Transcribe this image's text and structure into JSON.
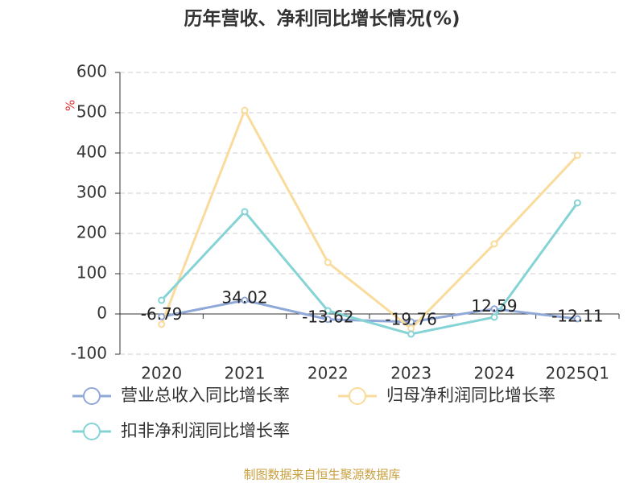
{
  "chart_data": {
    "type": "line",
    "title": "历年营收、净利同比增长情况(%)",
    "y_label": "%",
    "source": "制图数据来自恒生聚源数据库",
    "categories": [
      "2020",
      "2021",
      "2022",
      "2023",
      "2024",
      "2025Q1"
    ],
    "series": [
      {
        "name": "营业总收入同比增长率",
        "color": "#8fa8d8",
        "values": [
          -6.79,
          34.02,
          -13.62,
          -19.76,
          12.59,
          -12.11
        ],
        "show_labels": true
      },
      {
        "name": "归母净利润同比增长率",
        "color": "#fadb9c",
        "values": [
          -26,
          506,
          128,
          -36,
          174,
          394
        ]
      },
      {
        "name": "扣非净利润同比增长率",
        "color": "#85d3d5",
        "values": [
          34,
          254,
          8,
          -50,
          -8,
          276
        ]
      }
    ],
    "ylim": [
      -100,
      600
    ],
    "yticks": [
      -100,
      0,
      100,
      200,
      300,
      400,
      500,
      600
    ],
    "grid": true
  }
}
